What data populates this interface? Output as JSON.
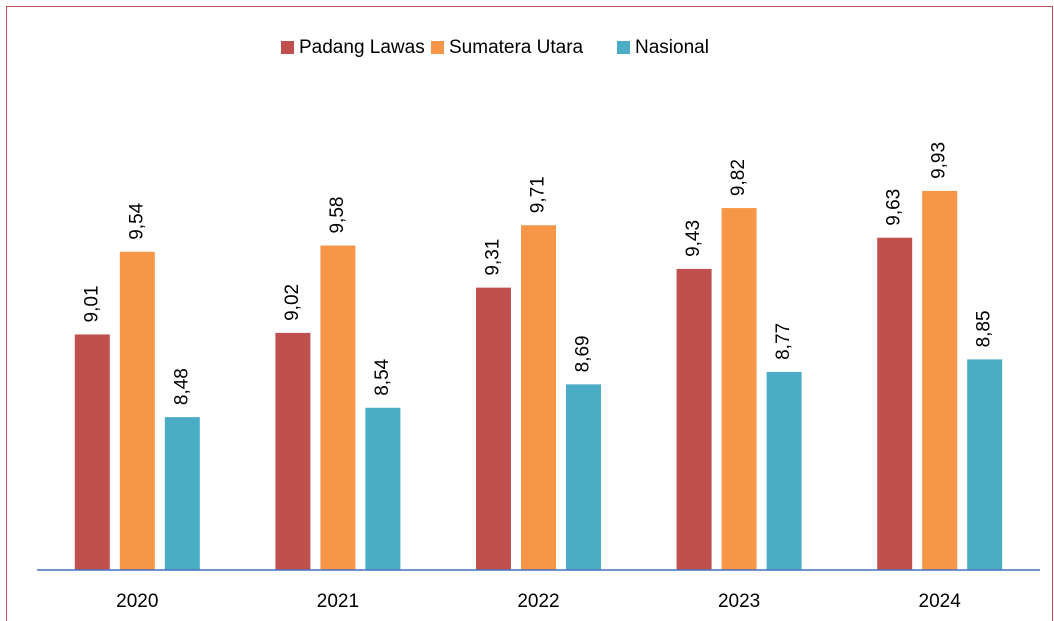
{
  "chart_data": {
    "type": "bar",
    "categories": [
      "2020",
      "2021",
      "2022",
      "2023",
      "2024"
    ],
    "series": [
      {
        "name": "Padang Lawas",
        "color": "#c0504d",
        "values": [
          9.01,
          9.02,
          9.31,
          9.43,
          9.63
        ],
        "value_labels": [
          "9,01",
          "9,02",
          "9,31",
          "9,43",
          "9,63"
        ]
      },
      {
        "name": "Sumatera Utara",
        "color": "#f79646",
        "values": [
          9.54,
          9.58,
          9.71,
          9.82,
          9.93
        ],
        "value_labels": [
          "9,54",
          "9,58",
          "9,71",
          "9,82",
          "9,93"
        ]
      },
      {
        "name": "Nasional",
        "color": "#4bacc6",
        "values": [
          8.48,
          8.54,
          8.69,
          8.77,
          8.85
        ],
        "value_labels": [
          "8,48",
          "8,54",
          "8,69",
          "8,77",
          "8,85"
        ]
      }
    ],
    "ylim": [
      7.5,
      10.5
    ],
    "legend": "top"
  }
}
